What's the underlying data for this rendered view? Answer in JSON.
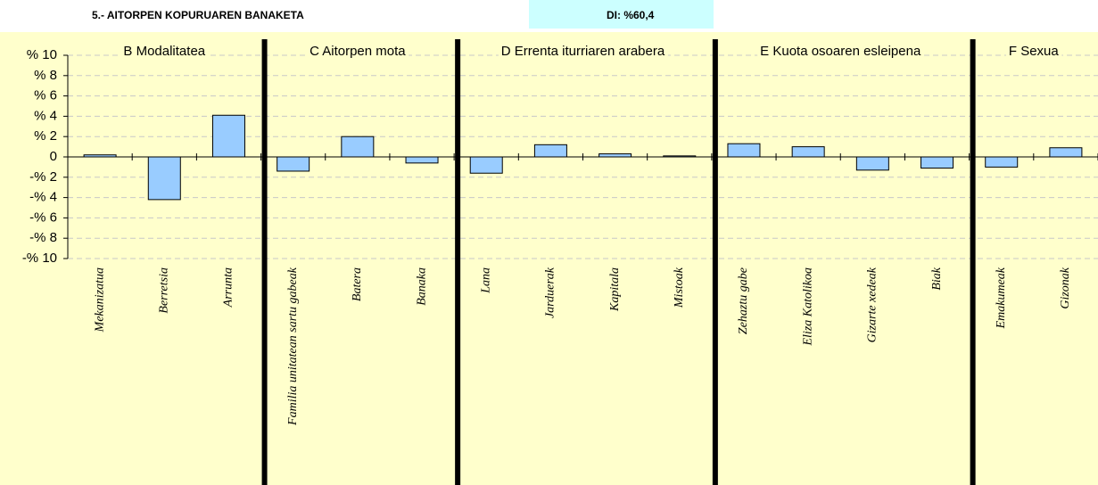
{
  "header": {
    "title": "5.- AITORPEN KOPURUAREN BANAKETA",
    "di": "DI:  %60,4"
  },
  "chart_data": {
    "type": "bar",
    "color": "#99ccff",
    "grid": true,
    "ylim": [
      -10,
      10
    ],
    "yticks": [
      {
        "value": -10,
        "label": "-% 10"
      },
      {
        "value": -8,
        "label": "-% 8"
      },
      {
        "value": -6,
        "label": "-% 6"
      },
      {
        "value": -4,
        "label": "-% 4"
      },
      {
        "value": -2,
        "label": "-% 2"
      },
      0,
      {
        "value": 2,
        "label": "% 2"
      },
      {
        "value": 4,
        "label": "% 4"
      },
      {
        "value": 6,
        "label": "% 6"
      },
      {
        "value": 8,
        "label": "% 8"
      },
      {
        "value": 10,
        "label": "% 10"
      }
    ],
    "groups": [
      {
        "name": "B Modalitatea",
        "categories": [
          "Mekanizatua",
          "Berretsia",
          "Arrunta"
        ],
        "values": [
          0.2,
          -4.2,
          4.1
        ]
      },
      {
        "name": "C Aitorpen mota",
        "categories": [
          "Familia unitatean sartu gabeak",
          "Batera",
          "Banaka"
        ],
        "values": [
          -1.4,
          2.0,
          -0.6
        ]
      },
      {
        "name": "D Errenta iturriaren arabera",
        "categories": [
          "Lana",
          "Jarduerak",
          "Kapitala",
          "Mistoak"
        ],
        "values": [
          -1.6,
          1.2,
          0.3,
          0.1
        ]
      },
      {
        "name": "E Kuota osoaren esleipena",
        "categories": [
          "Zehaztu gabe",
          "Eliza Katolikoa",
          "Gizarte xedeak",
          "Biak"
        ],
        "values": [
          1.3,
          1.0,
          -1.3,
          -1.1
        ]
      },
      {
        "name": "F Sexua",
        "categories": [
          "Emakumeak",
          "Gizonak"
        ],
        "values": [
          -1.0,
          0.9
        ]
      }
    ]
  }
}
